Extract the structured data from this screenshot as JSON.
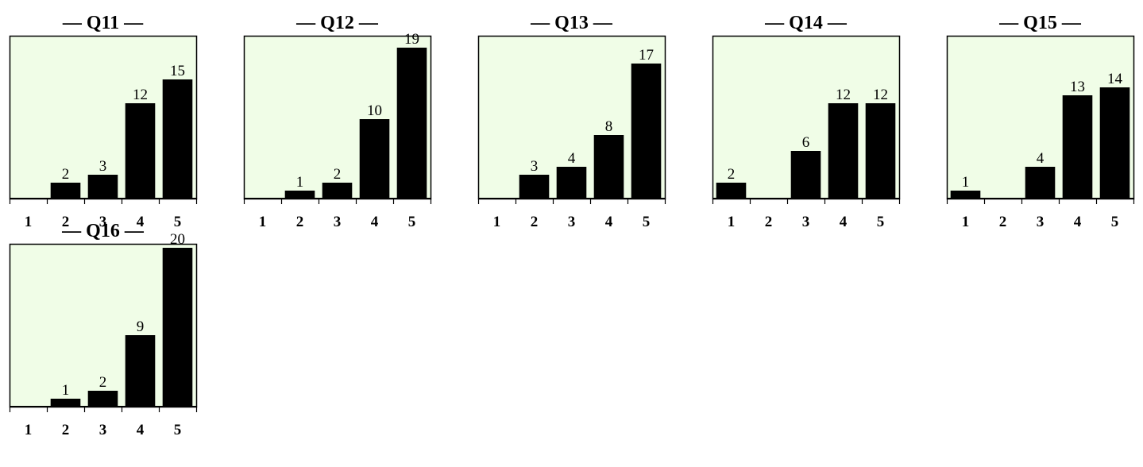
{
  "chart_data": [
    {
      "type": "bar",
      "title": "— Q11 —",
      "categories": [
        "1",
        "2",
        "3",
        "4",
        "5"
      ],
      "values": [
        0,
        2,
        3,
        12,
        15
      ],
      "ylim": [
        0,
        20
      ],
      "background": "#f0fde7",
      "bar_color": "#000000",
      "grid": false
    },
    {
      "type": "bar",
      "title": "— Q12 —",
      "categories": [
        "1",
        "2",
        "3",
        "4",
        "5"
      ],
      "values": [
        0,
        1,
        2,
        10,
        19
      ],
      "ylim": [
        0,
        20
      ],
      "background": "#f0fde7",
      "bar_color": "#000000",
      "grid": false
    },
    {
      "type": "bar",
      "title": "— Q13 —",
      "categories": [
        "1",
        "2",
        "3",
        "4",
        "5"
      ],
      "values": [
        0,
        3,
        4,
        8,
        17
      ],
      "ylim": [
        0,
        20
      ],
      "background": "#f0fde7",
      "bar_color": "#000000",
      "grid": false
    },
    {
      "type": "bar",
      "title": "— Q14 —",
      "categories": [
        "1",
        "2",
        "3",
        "4",
        "5"
      ],
      "values": [
        2,
        0,
        6,
        12,
        12
      ],
      "ylim": [
        0,
        20
      ],
      "background": "#f0fde7",
      "bar_color": "#000000",
      "grid": false
    },
    {
      "type": "bar",
      "title": "— Q15 —",
      "categories": [
        "1",
        "2",
        "3",
        "4",
        "5"
      ],
      "values": [
        1,
        0,
        4,
        13,
        14
      ],
      "ylim": [
        0,
        20
      ],
      "background": "#f0fde7",
      "bar_color": "#000000",
      "grid": false
    },
    {
      "type": "bar",
      "title": "— Q16 —",
      "categories": [
        "1",
        "2",
        "3",
        "4",
        "5"
      ],
      "values": [
        0,
        1,
        2,
        9,
        20
      ],
      "ylim": [
        0,
        20
      ],
      "background": "#f0fde7",
      "bar_color": "#000000",
      "grid": false
    }
  ]
}
